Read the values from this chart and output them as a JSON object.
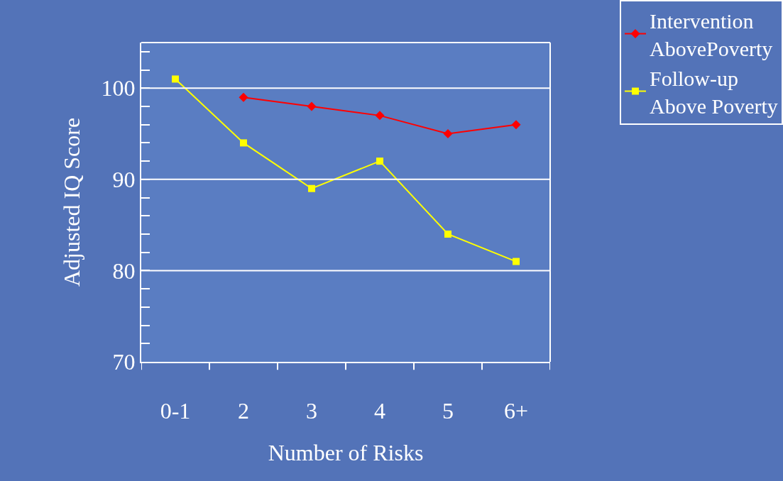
{
  "chart_data": {
    "type": "line",
    "xlabel": "Number of Risks",
    "ylabel": "Adjusted IQ Score",
    "categories": [
      "0-1",
      "2",
      "3",
      "4",
      "5",
      "6+"
    ],
    "series": [
      {
        "name": "Intervention AbovePoverty",
        "color": "#ff0000",
        "marker": "diamond",
        "values": [
          null,
          99,
          98,
          97,
          95,
          96
        ]
      },
      {
        "name": "Follow-up Above Poverty",
        "color": "#ffff00",
        "marker": "square",
        "values": [
          101,
          94,
          89,
          92,
          84,
          81
        ]
      }
    ],
    "ylim": [
      70,
      105
    ],
    "yticks": [
      70,
      {
        "value": 72,
        "label": null
      },
      {
        "value": 74,
        "label": null
      },
      {
        "value": 76,
        "label": null
      },
      {
        "value": 78,
        "label": null
      },
      80,
      {
        "value": 82,
        "label": null
      },
      {
        "value": 84,
        "label": null
      },
      {
        "value": 86,
        "label": null
      },
      {
        "value": 88,
        "label": null
      },
      90,
      {
        "value": 92,
        "label": null
      },
      {
        "value": 94,
        "label": null
      },
      {
        "value": 96,
        "label": null
      },
      {
        "value": 98,
        "label": null
      },
      100,
      {
        "value": 102,
        "label": null
      },
      {
        "value": 104,
        "label": null
      }
    ],
    "grid": "y",
    "legend": "top right",
    "line_style": "solid"
  }
}
